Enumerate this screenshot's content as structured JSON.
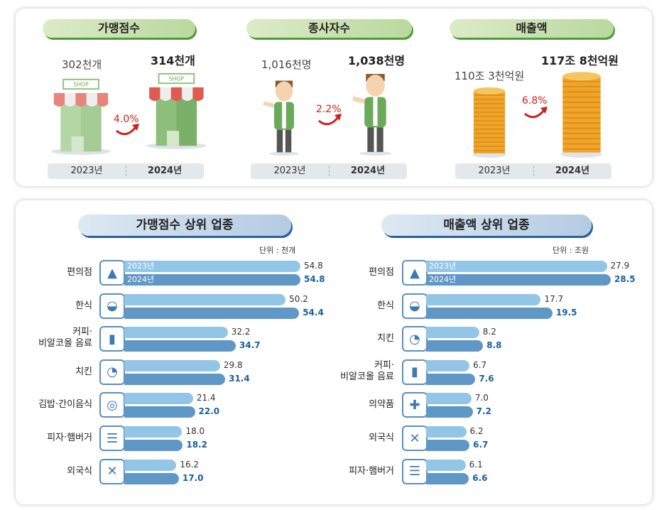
{
  "top": {
    "groups": [
      {
        "title": "가맹점수",
        "v2023": "302천개",
        "v2024": "314천개",
        "growth": "4.0%",
        "icon": "shop-icon"
      },
      {
        "title": "종사자수",
        "v2023": "1,016천명",
        "v2024": "1,038천명",
        "growth": "2.2%",
        "icon": "worker-icon"
      },
      {
        "title": "매출액",
        "v2023": "110조 3천억원",
        "v2024": "117조 8천억원",
        "growth": "6.8%",
        "icon": "coin-stack-icon"
      }
    ],
    "year_a": "2023년",
    "year_b": "2024년",
    "shop_sign": "SHOP"
  },
  "colors": {
    "bar2023": "#93c6e6",
    "bar2024": "#5f97c6",
    "growth": "#d0201e"
  },
  "chart_data": [
    {
      "type": "bar",
      "title": "가맹점수 상위 업종",
      "unit": "단위 : 천개",
      "legend": [
        "2023년",
        "2024년"
      ],
      "categories": [
        "편의점",
        "한식",
        "커피·\n비알코올 음료",
        "치킨",
        "김밥·간이음식",
        "피자·햄버거",
        "외국식"
      ],
      "icons": [
        "convenience-store-icon",
        "bowl-icon",
        "drink-cup-icon",
        "chicken-icon",
        "gimbap-icon",
        "burger-icon",
        "fork-knife-icon"
      ],
      "series": [
        {
          "name": "2023년",
          "values": [
            54.8,
            50.2,
            32.2,
            29.8,
            21.4,
            18.0,
            16.2
          ]
        },
        {
          "name": "2024년",
          "values": [
            54.8,
            54.4,
            34.7,
            31.4,
            22.0,
            18.2,
            17.0
          ]
        }
      ]
    },
    {
      "type": "bar",
      "title": "매출액 상위 업종",
      "unit": "단위 : 조원",
      "legend": [
        "2023년",
        "2024년"
      ],
      "categories": [
        "편의점",
        "한식",
        "치킨",
        "커피·\n비알코올 음료",
        "의약품",
        "외국식",
        "피자·햄버거"
      ],
      "icons": [
        "convenience-store-icon",
        "bowl-icon",
        "chicken-icon",
        "drink-cup-icon",
        "first-aid-icon",
        "fork-knife-icon",
        "burger-icon"
      ],
      "series": [
        {
          "name": "2023년",
          "values": [
            27.9,
            17.7,
            8.2,
            6.7,
            7.0,
            6.2,
            6.1
          ]
        },
        {
          "name": "2024년",
          "values": [
            28.5,
            19.5,
            8.8,
            7.6,
            7.2,
            6.7,
            6.6
          ]
        }
      ]
    }
  ]
}
